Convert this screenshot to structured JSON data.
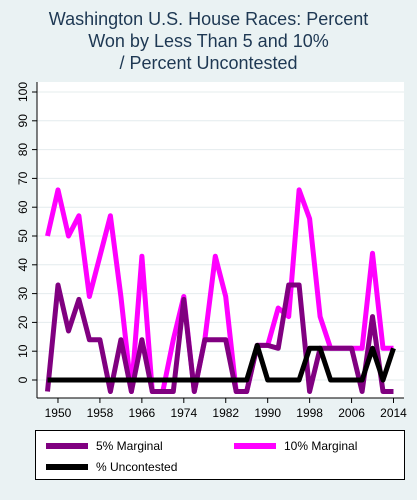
{
  "chart_data": {
    "type": "line",
    "title_lines": [
      "Washington U.S. House Races: Percent",
      "Won by Less Than 5 and 10%",
      "/ Percent Uncontested"
    ],
    "xlabel": "",
    "ylabel": "",
    "xlim": [
      1946,
      2016
    ],
    "ylim": [
      -5,
      100
    ],
    "x_ticks": [
      1950,
      1958,
      1966,
      1974,
      1982,
      1990,
      1998,
      2006,
      2014
    ],
    "y_ticks": [
      0,
      10,
      20,
      30,
      40,
      50,
      60,
      70,
      80,
      90,
      100
    ],
    "grid": "horizontal",
    "legend_position": "bottom",
    "series": [
      {
        "name": "5% Marginal",
        "color": "#800080",
        "x": [
          1948,
          1950,
          1952,
          1954,
          1956,
          1958,
          1960,
          1962,
          1964,
          1966,
          1968,
          1970,
          1972,
          1974,
          1976,
          1978,
          1980,
          1982,
          1984,
          1986,
          1988,
          1990,
          1992,
          1994,
          1996,
          1998,
          2000,
          2002,
          2004,
          2006,
          2008,
          2010,
          2012,
          2014
        ],
        "values": [
          -4,
          33,
          17,
          28,
          14,
          14,
          -4,
          14,
          -4,
          14,
          -4,
          -4,
          -4,
          28,
          -4,
          14,
          14,
          14,
          -4,
          -4,
          12,
          12,
          11,
          33,
          33,
          -4,
          11,
          11,
          11,
          11,
          -4,
          22,
          -4,
          -4
        ]
      },
      {
        "name": "10% Marginal",
        "color": "#ff00ff",
        "x": [
          1948,
          1950,
          1952,
          1954,
          1956,
          1958,
          1960,
          1962,
          1964,
          1966,
          1968,
          1970,
          1972,
          1974,
          1976,
          1978,
          1980,
          1982,
          1984,
          1986,
          1988,
          1990,
          1992,
          1994,
          1996,
          1998,
          2000,
          2002,
          2004,
          2006,
          2008,
          2010,
          2012,
          2014
        ],
        "values": [
          50,
          66,
          50,
          57,
          29,
          43,
          57,
          29,
          -4,
          43,
          -4,
          -4,
          14,
          29,
          -4,
          14,
          43,
          29,
          -4,
          -4,
          12,
          12,
          25,
          22,
          66,
          56,
          22,
          11,
          11,
          11,
          11,
          44,
          11,
          11
        ]
      },
      {
        "name": "% Uncontested",
        "color": "#000000",
        "x": [
          1948,
          1950,
          1952,
          1954,
          1956,
          1958,
          1960,
          1962,
          1964,
          1966,
          1968,
          1970,
          1972,
          1974,
          1976,
          1978,
          1980,
          1982,
          1984,
          1986,
          1988,
          1990,
          1992,
          1994,
          1996,
          1998,
          2000,
          2002,
          2004,
          2006,
          2008,
          2010,
          2012,
          2014
        ],
        "values": [
          0,
          0,
          0,
          0,
          0,
          0,
          0,
          0,
          0,
          0,
          0,
          0,
          0,
          0,
          0,
          0,
          0,
          0,
          0,
          0,
          12,
          0,
          0,
          0,
          0,
          11,
          11,
          0,
          0,
          0,
          0,
          11,
          0,
          11
        ]
      }
    ]
  }
}
